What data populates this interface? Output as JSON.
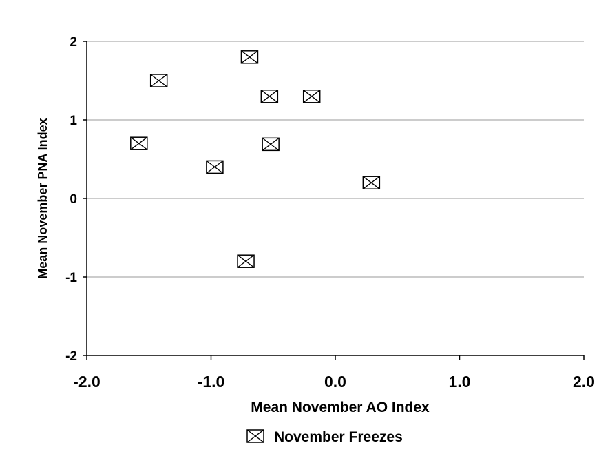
{
  "chart_data": {
    "type": "scatter",
    "title": "",
    "xlabel": "Mean November AO Index",
    "ylabel": "Mean November PNA Index",
    "xlim": [
      -2.0,
      2.0
    ],
    "ylim": [
      -2,
      2
    ],
    "x_ticks": [
      -2.0,
      -1.0,
      0.0,
      1.0,
      2.0
    ],
    "x_tick_labels": [
      "-2.0",
      "-1.0",
      "0.0",
      "1.0",
      "2.0"
    ],
    "y_ticks": [
      -2,
      -1,
      0,
      1,
      2
    ],
    "y_tick_labels": [
      "-2",
      "-1",
      "0",
      "1",
      "2"
    ],
    "grid": "horizontal",
    "legend_position": "bottom",
    "series": [
      {
        "name": "November Freezes",
        "marker": "boxed-x",
        "points": [
          {
            "x": -0.69,
            "y": 1.8
          },
          {
            "x": -1.42,
            "y": 1.5
          },
          {
            "x": -0.53,
            "y": 1.3
          },
          {
            "x": -0.19,
            "y": 1.3
          },
          {
            "x": -1.58,
            "y": 0.7
          },
          {
            "x": -0.52,
            "y": 0.69
          },
          {
            "x": -0.97,
            "y": 0.4
          },
          {
            "x": 0.29,
            "y": 0.2
          },
          {
            "x": -0.72,
            "y": -0.8
          }
        ]
      }
    ],
    "colors": {
      "axis": "#000000",
      "grid": "#999999",
      "marker": "#000000"
    }
  }
}
